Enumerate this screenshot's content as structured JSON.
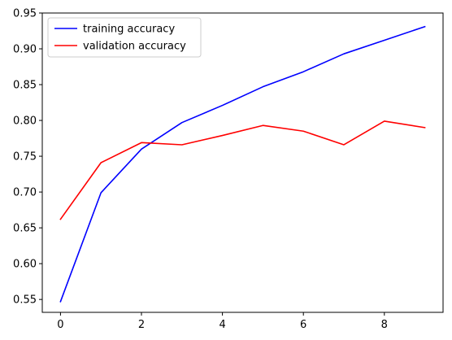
{
  "chart_data": {
    "type": "line",
    "title": "",
    "xlabel": "",
    "ylabel": "",
    "x": [
      0,
      1,
      2,
      3,
      4,
      5,
      6,
      7,
      8,
      9
    ],
    "xlim": [
      -0.45,
      9.45
    ],
    "ylim": [
      0.532,
      0.95
    ],
    "x_ticks": [
      0,
      2,
      4,
      6,
      8
    ],
    "y_ticks": [
      0.55,
      0.6,
      0.65,
      0.7,
      0.75,
      0.8,
      0.85,
      0.9,
      0.95
    ],
    "x_tick_labels": [
      "0",
      "2",
      "4",
      "6",
      "8"
    ],
    "y_tick_labels": [
      "0.55",
      "0.60",
      "0.65",
      "0.70",
      "0.75",
      "0.80",
      "0.85",
      "0.90",
      "0.95"
    ],
    "grid": false,
    "legend_position": "top-left",
    "series": [
      {
        "name": "training accuracy",
        "color": "#0000ff",
        "values": [
          0.547,
          0.699,
          0.76,
          0.797,
          0.821,
          0.847,
          0.868,
          0.893,
          0.912,
          0.931
        ]
      },
      {
        "name": "validation accuracy",
        "color": "#ff0000",
        "values": [
          0.662,
          0.741,
          0.769,
          0.766,
          0.779,
          0.793,
          0.785,
          0.766,
          0.799,
          0.79
        ]
      }
    ]
  }
}
